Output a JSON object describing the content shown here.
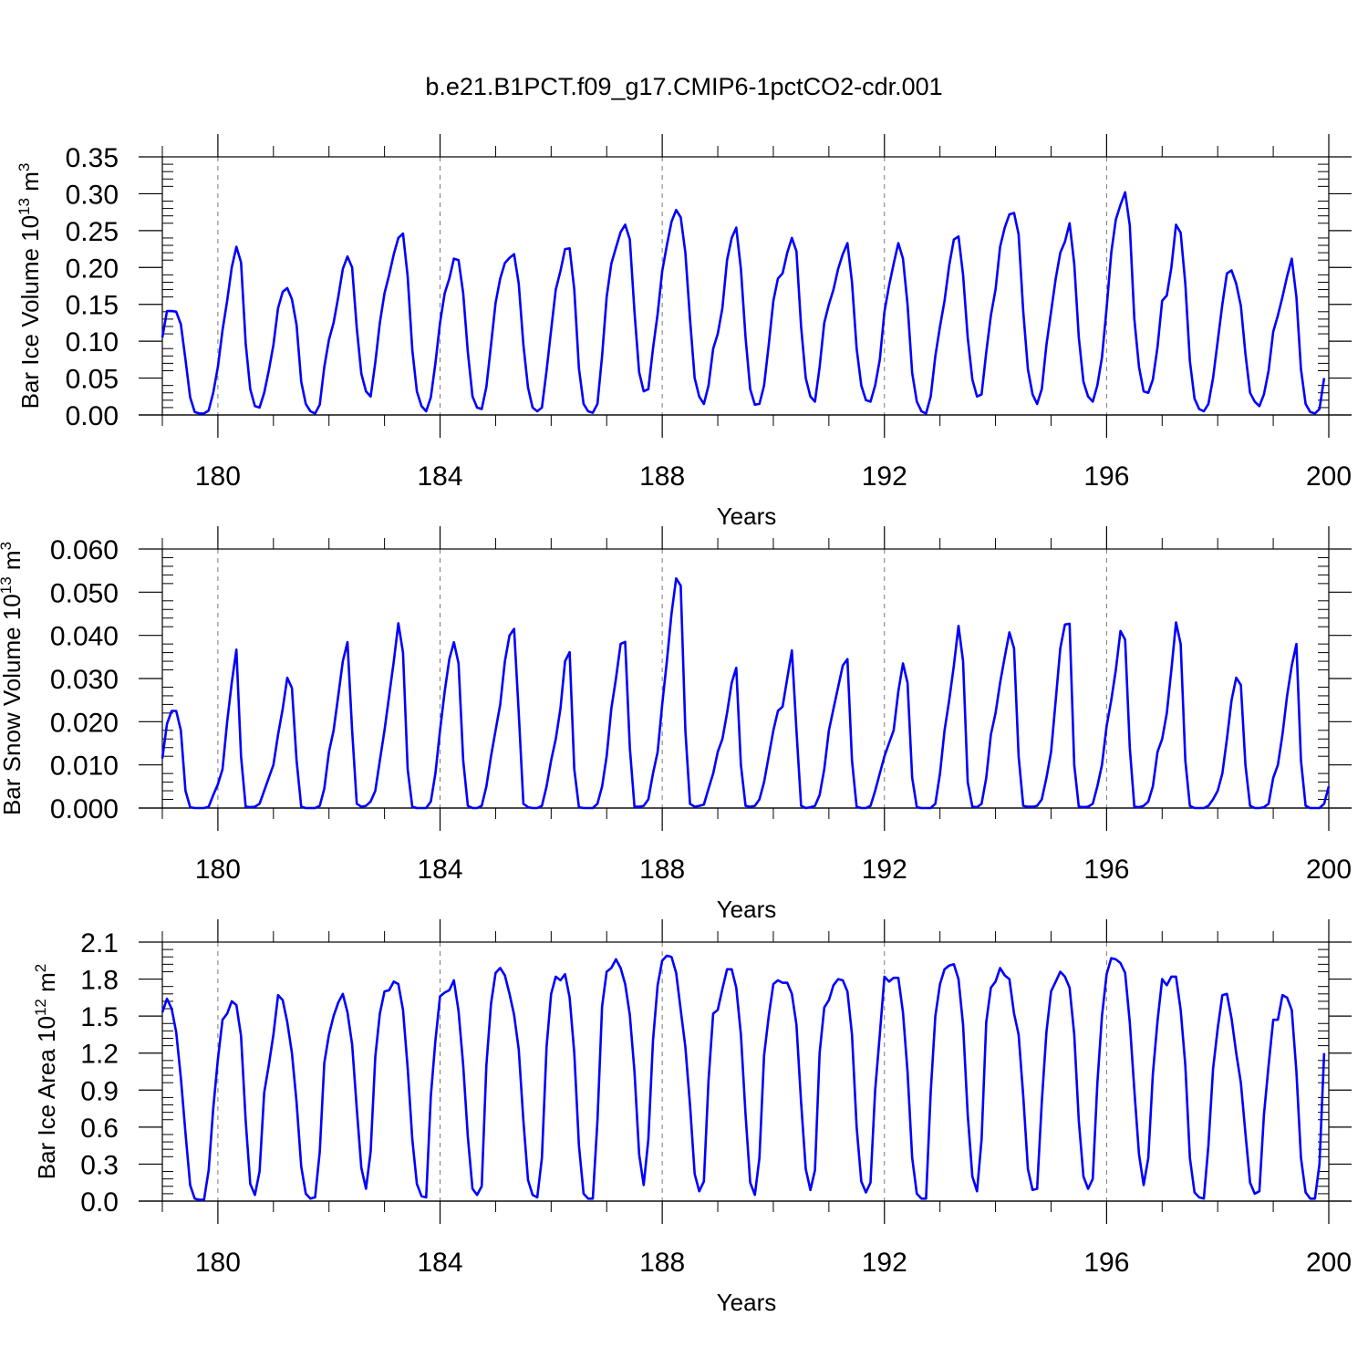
{
  "title": "b.e21.B1PCT.f09_g17.CMIP6-1pctCO2-cdr.001",
  "colors": {
    "series": "#0000ff",
    "axis": "#000000",
    "grid": "#777777"
  },
  "chart_data": [
    {
      "type": "line",
      "ylabel": "Bar Ice Volume 10",
      "ylabel_sup": "13",
      "ylabel_unit": " m",
      "ylabel_unit_sup": "3",
      "xlabel": "Years",
      "xlim": [
        179.0,
        200.0
      ],
      "ylim": [
        0.0,
        0.35
      ],
      "x_ticks": [
        180,
        184,
        188,
        192,
        196,
        200
      ],
      "x_tick_labels": [
        "180",
        "184",
        "188",
        "192",
        "196",
        "200"
      ],
      "y_ticks": [
        0.0,
        0.05,
        0.1,
        0.15,
        0.2,
        0.25,
        0.3,
        0.35
      ],
      "y_tick_labels": [
        "0.00",
        "0.05",
        "0.10",
        "0.15",
        "0.20",
        "0.25",
        "0.30",
        "0.35"
      ],
      "grid": "vertical dashed at major x ticks",
      "series": [
        {
          "start_x": 179.0,
          "step": 0.0833333,
          "y": [
            0.105,
            0.141,
            0.141,
            0.14,
            0.123,
            0.075,
            0.024,
            0.004,
            0.002,
            0.002,
            0.006,
            0.03,
            0.065,
            0.115,
            0.155,
            0.2,
            0.228,
            0.207,
            0.097,
            0.035,
            0.012,
            0.01,
            0.03,
            0.06,
            0.095,
            0.145,
            0.167,
            0.172,
            0.157,
            0.122,
            0.045,
            0.015,
            0.005,
            0.002,
            0.014,
            0.065,
            0.102,
            0.125,
            0.16,
            0.198,
            0.215,
            0.2,
            0.118,
            0.056,
            0.032,
            0.025,
            0.071,
            0.125,
            0.165,
            0.19,
            0.218,
            0.24,
            0.246,
            0.188,
            0.088,
            0.032,
            0.012,
            0.005,
            0.024,
            0.07,
            0.125,
            0.165,
            0.185,
            0.212,
            0.21,
            0.165,
            0.085,
            0.025,
            0.01,
            0.008,
            0.038,
            0.095,
            0.152,
            0.185,
            0.206,
            0.213,
            0.218,
            0.178,
            0.095,
            0.037,
            0.01,
            0.005,
            0.01,
            0.06,
            0.115,
            0.17,
            0.195,
            0.225,
            0.226,
            0.17,
            0.063,
            0.015,
            0.005,
            0.003,
            0.015,
            0.08,
            0.16,
            0.205,
            0.227,
            0.248,
            0.258,
            0.238,
            0.14,
            0.058,
            0.032,
            0.035,
            0.09,
            0.137,
            0.195,
            0.23,
            0.262,
            0.278,
            0.268,
            0.22,
            0.13,
            0.05,
            0.025,
            0.015,
            0.04,
            0.09,
            0.11,
            0.145,
            0.21,
            0.24,
            0.254,
            0.198,
            0.105,
            0.035,
            0.014,
            0.015,
            0.04,
            0.095,
            0.155,
            0.185,
            0.192,
            0.22,
            0.24,
            0.222,
            0.12,
            0.05,
            0.025,
            0.018,
            0.065,
            0.125,
            0.15,
            0.17,
            0.198,
            0.218,
            0.233,
            0.18,
            0.09,
            0.04,
            0.02,
            0.018,
            0.04,
            0.075,
            0.14,
            0.175,
            0.205,
            0.233,
            0.212,
            0.15,
            0.057,
            0.018,
            0.005,
            0.002,
            0.025,
            0.08,
            0.12,
            0.155,
            0.203,
            0.238,
            0.242,
            0.19,
            0.105,
            0.048,
            0.025,
            0.028,
            0.085,
            0.135,
            0.17,
            0.228,
            0.254,
            0.272,
            0.274,
            0.245,
            0.14,
            0.062,
            0.028,
            0.015,
            0.035,
            0.095,
            0.14,
            0.185,
            0.22,
            0.235,
            0.26,
            0.205,
            0.105,
            0.045,
            0.025,
            0.018,
            0.04,
            0.078,
            0.145,
            0.22,
            0.265,
            0.285,
            0.302,
            0.257,
            0.13,
            0.065,
            0.032,
            0.03,
            0.048,
            0.092,
            0.155,
            0.162,
            0.2,
            0.258,
            0.247,
            0.178,
            0.073,
            0.022,
            0.008,
            0.005,
            0.015,
            0.05,
            0.1,
            0.15,
            0.192,
            0.196,
            0.178,
            0.148,
            0.083,
            0.03,
            0.018,
            0.012,
            0.028,
            0.06,
            0.113,
            0.135,
            0.16,
            0.188,
            0.212,
            0.16,
            0.062,
            0.015,
            0.004,
            0.002,
            0.008,
            0.05
          ]
        }
      ]
    },
    {
      "type": "line",
      "ylabel": "Bar Snow Volume 10",
      "ylabel_sup": "13",
      "ylabel_unit": " m",
      "ylabel_unit_sup": "3",
      "xlabel": "Years",
      "xlim": [
        179.0,
        200.0
      ],
      "ylim": [
        0.0,
        0.06
      ],
      "x_ticks": [
        180,
        184,
        188,
        192,
        196,
        200
      ],
      "x_tick_labels": [
        "180",
        "184",
        "188",
        "192",
        "196",
        "200"
      ],
      "y_ticks": [
        0.0,
        0.01,
        0.02,
        0.03,
        0.04,
        0.05,
        0.06
      ],
      "y_tick_labels": [
        "0.000",
        "0.010",
        "0.020",
        "0.030",
        "0.040",
        "0.050",
        "0.060"
      ],
      "grid": "vertical dashed at major x ticks",
      "series": [
        {
          "start_x": 179.0,
          "step": 0.0833333,
          "y": [
            0.0115,
            0.0195,
            0.0225,
            0.0225,
            0.018,
            0.004,
            0.0002,
            0.0,
            0.0,
            0.0,
            0.0003,
            0.003,
            0.0055,
            0.009,
            0.02,
            0.029,
            0.0367,
            0.012,
            0.0003,
            0.0002,
            0.0003,
            0.001,
            0.004,
            0.007,
            0.01,
            0.017,
            0.023,
            0.0302,
            0.0278,
            0.011,
            0.0003,
            0.0,
            0.0,
            0.0,
            0.0005,
            0.0045,
            0.013,
            0.018,
            0.026,
            0.034,
            0.0384,
            0.018,
            0.001,
            0.0003,
            0.0005,
            0.0015,
            0.004,
            0.011,
            0.018,
            0.026,
            0.034,
            0.0428,
            0.036,
            0.009,
            0.0003,
            0.0,
            0.0,
            0.0,
            0.0015,
            0.008,
            0.018,
            0.027,
            0.0345,
            0.0384,
            0.0335,
            0.011,
            0.0005,
            0.0,
            0.0,
            0.0005,
            0.005,
            0.012,
            0.018,
            0.024,
            0.034,
            0.04,
            0.0415,
            0.022,
            0.001,
            0.0002,
            0.0,
            0.0,
            0.0005,
            0.005,
            0.011,
            0.016,
            0.023,
            0.034,
            0.0361,
            0.009,
            0.0002,
            0.0,
            0.0,
            0.0,
            0.001,
            0.005,
            0.012,
            0.023,
            0.03,
            0.038,
            0.0385,
            0.014,
            0.0003,
            0.0003,
            0.0005,
            0.002,
            0.008,
            0.013,
            0.024,
            0.034,
            0.045,
            0.0532,
            0.0515,
            0.018,
            0.001,
            0.0003,
            0.0005,
            0.0008,
            0.0045,
            0.008,
            0.013,
            0.016,
            0.022,
            0.029,
            0.0325,
            0.01,
            0.0005,
            0.0003,
            0.0005,
            0.002,
            0.006,
            0.012,
            0.018,
            0.0225,
            0.0235,
            0.03,
            0.0365,
            0.018,
            0.0005,
            0.0,
            0.0002,
            0.0005,
            0.003,
            0.009,
            0.018,
            0.023,
            0.028,
            0.033,
            0.0345,
            0.011,
            0.0003,
            0.0,
            0.0,
            0.0005,
            0.004,
            0.008,
            0.012,
            0.015,
            0.018,
            0.027,
            0.0335,
            0.029,
            0.007,
            0.0002,
            0.0,
            0.0,
            0.0,
            0.001,
            0.008,
            0.018,
            0.025,
            0.033,
            0.0422,
            0.034,
            0.006,
            0.0003,
            0.0002,
            0.001,
            0.007,
            0.017,
            0.022,
            0.029,
            0.035,
            0.0407,
            0.037,
            0.012,
            0.0005,
            0.0003,
            0.0003,
            0.0005,
            0.002,
            0.007,
            0.013,
            0.025,
            0.037,
            0.0425,
            0.0427,
            0.01,
            0.0003,
            0.0002,
            0.0003,
            0.001,
            0.005,
            0.01,
            0.019,
            0.025,
            0.032,
            0.041,
            0.039,
            0.014,
            0.0003,
            0.0002,
            0.0005,
            0.0015,
            0.005,
            0.013,
            0.016,
            0.022,
            0.032,
            0.043,
            0.038,
            0.011,
            0.0005,
            0.0,
            0.0,
            0.0,
            0.0005,
            0.002,
            0.004,
            0.008,
            0.016,
            0.025,
            0.0302,
            0.0285,
            0.01,
            0.0005,
            0.0,
            0.0,
            0.0002,
            0.001,
            0.007,
            0.01,
            0.017,
            0.026,
            0.033,
            0.038,
            0.011,
            0.0005,
            0.0,
            0.0,
            0.0,
            0.001,
            0.005
          ]
        }
      ]
    },
    {
      "type": "line",
      "ylabel": "Bar Ice Area 10",
      "ylabel_sup": "12",
      "ylabel_unit": " m",
      "ylabel_unit_sup": "2",
      "xlabel": "Years",
      "xlim": [
        179.0,
        200.0
      ],
      "ylim": [
        0.0,
        2.1
      ],
      "x_ticks": [
        180,
        184,
        188,
        192,
        196,
        200
      ],
      "x_tick_labels": [
        "180",
        "184",
        "188",
        "192",
        "196",
        "200"
      ],
      "y_ticks": [
        0.0,
        0.3,
        0.6,
        0.9,
        1.2,
        1.5,
        1.8,
        2.1
      ],
      "y_tick_labels": [
        "0.0",
        "0.3",
        "0.6",
        "0.9",
        "1.2",
        "1.5",
        "1.8",
        "2.1"
      ],
      "grid": "vertical dashed at major x ticks",
      "series": [
        {
          "start_x": 179.0,
          "step": 0.0833333,
          "y": [
            1.53,
            1.64,
            1.56,
            1.37,
            1.0,
            0.55,
            0.13,
            0.02,
            0.01,
            0.01,
            0.25,
            0.75,
            1.15,
            1.47,
            1.52,
            1.62,
            1.59,
            1.34,
            0.65,
            0.14,
            0.05,
            0.24,
            0.88,
            1.1,
            1.35,
            1.67,
            1.63,
            1.45,
            1.2,
            0.8,
            0.28,
            0.06,
            0.02,
            0.03,
            0.4,
            1.12,
            1.35,
            1.5,
            1.61,
            1.68,
            1.53,
            1.27,
            0.75,
            0.27,
            0.1,
            0.4,
            1.17,
            1.52,
            1.7,
            1.71,
            1.78,
            1.76,
            1.55,
            1.08,
            0.5,
            0.14,
            0.04,
            0.03,
            0.85,
            1.3,
            1.66,
            1.69,
            1.71,
            1.79,
            1.54,
            1.1,
            0.52,
            0.1,
            0.05,
            0.12,
            1.1,
            1.6,
            1.85,
            1.89,
            1.83,
            1.68,
            1.51,
            1.23,
            0.65,
            0.17,
            0.05,
            0.03,
            0.35,
            1.25,
            1.68,
            1.82,
            1.79,
            1.84,
            1.65,
            1.2,
            0.45,
            0.06,
            0.02,
            0.02,
            0.65,
            1.58,
            1.86,
            1.89,
            1.96,
            1.89,
            1.76,
            1.51,
            1.05,
            0.38,
            0.13,
            0.5,
            1.3,
            1.75,
            1.95,
            1.99,
            1.98,
            1.85,
            1.55,
            1.25,
            0.78,
            0.22,
            0.08,
            0.16,
            0.98,
            1.52,
            1.55,
            1.72,
            1.88,
            1.88,
            1.73,
            1.35,
            0.7,
            0.15,
            0.05,
            0.35,
            1.18,
            1.5,
            1.76,
            1.79,
            1.77,
            1.77,
            1.68,
            1.43,
            0.8,
            0.26,
            0.09,
            0.25,
            1.2,
            1.57,
            1.63,
            1.75,
            1.8,
            1.79,
            1.7,
            1.35,
            0.6,
            0.16,
            0.07,
            0.15,
            0.9,
            1.35,
            1.82,
            1.78,
            1.81,
            1.81,
            1.53,
            1.05,
            0.35,
            0.06,
            0.02,
            0.02,
            0.88,
            1.5,
            1.76,
            1.88,
            1.91,
            1.92,
            1.8,
            1.43,
            0.7,
            0.2,
            0.08,
            0.5,
            1.45,
            1.73,
            1.78,
            1.89,
            1.83,
            1.8,
            1.52,
            1.35,
            0.85,
            0.26,
            0.09,
            0.1,
            0.8,
            1.37,
            1.7,
            1.78,
            1.86,
            1.82,
            1.73,
            1.35,
            0.65,
            0.2,
            0.1,
            0.18,
            0.95,
            1.5,
            1.84,
            1.97,
            1.96,
            1.93,
            1.85,
            1.45,
            0.9,
            0.38,
            0.13,
            0.35,
            1.03,
            1.46,
            1.8,
            1.75,
            1.82,
            1.82,
            1.55,
            1.1,
            0.35,
            0.07,
            0.03,
            0.02,
            0.45,
            1.07,
            1.4,
            1.67,
            1.68,
            1.48,
            1.2,
            0.96,
            0.55,
            0.15,
            0.06,
            0.08,
            0.7,
            1.1,
            1.47,
            1.47,
            1.67,
            1.65,
            1.55,
            1.05,
            0.35,
            0.07,
            0.02,
            0.02,
            0.3,
            1.2
          ]
        }
      ]
    }
  ]
}
